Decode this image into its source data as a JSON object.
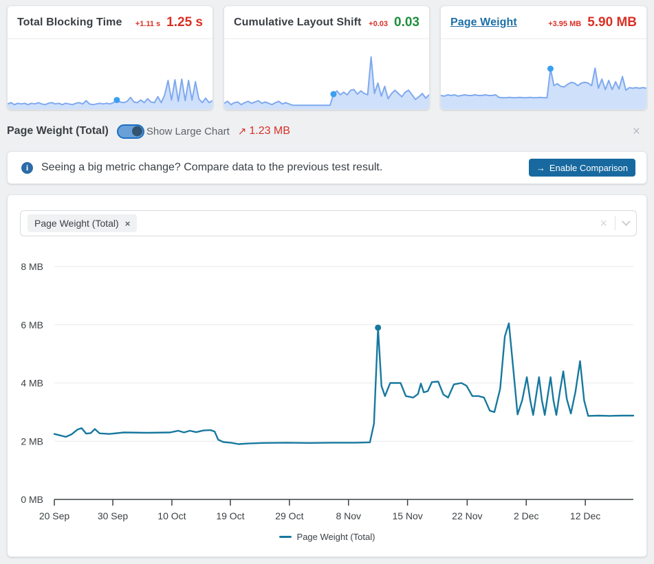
{
  "colors": {
    "red": "#d93025",
    "green": "#1e8e3e",
    "link_blue": "#1c6fa8",
    "spark_stroke": "#7fa9ef",
    "spark_fill": "#cfe0fb",
    "spark_dot": "#3b9ff0",
    "main_line": "#17789e",
    "grid": "#e8e9ea",
    "axis": "#3c4043",
    "button_bg": "#17699f"
  },
  "cards": [
    {
      "title": "Total Blocking Time",
      "delta": "+1.11 s",
      "delta_color": "#d93025",
      "value": "1.25 s",
      "value_color": "#d93025",
      "spark": {
        "values": [
          0.06,
          0.08,
          0.05,
          0.07,
          0.06,
          0.07,
          0.05,
          0.07,
          0.06,
          0.08,
          0.06,
          0.05,
          0.07,
          0.08,
          0.06,
          0.07,
          0.05,
          0.07,
          0.06,
          0.05,
          0.07,
          0.08,
          0.06,
          0.11,
          0.06,
          0.05,
          0.06,
          0.07,
          0.06,
          0.07,
          0.06,
          0.08,
          0.12,
          0.09,
          0.08,
          0.1,
          0.16,
          0.09,
          0.08,
          0.12,
          0.08,
          0.14,
          0.09,
          0.08,
          0.17,
          0.08,
          0.2,
          0.42,
          0.12,
          0.43,
          0.1,
          0.44,
          0.11,
          0.42,
          0.12,
          0.4,
          0.14,
          0.08,
          0.15,
          0.08,
          0.11
        ],
        "dot_index": 32
      }
    },
    {
      "title": "Cumulative Layout Shift",
      "delta": "+0.03",
      "delta_color": "#d93025",
      "value": "0.03",
      "value_color": "#1e8e3e",
      "spark": {
        "values": [
          0.07,
          0.1,
          0.05,
          0.08,
          0.09,
          0.05,
          0.08,
          0.1,
          0.07,
          0.09,
          0.11,
          0.07,
          0.09,
          0.07,
          0.05,
          0.08,
          0.1,
          0.06,
          0.08,
          0.06,
          0.04,
          0.04,
          0.04,
          0.04,
          0.04,
          0.04,
          0.04,
          0.04,
          0.04,
          0.04,
          0.04,
          0.04,
          0.21,
          0.26,
          0.2,
          0.24,
          0.2,
          0.27,
          0.28,
          0.21,
          0.26,
          0.22,
          0.2,
          0.78,
          0.22,
          0.38,
          0.18,
          0.33,
          0.14,
          0.22,
          0.27,
          0.22,
          0.17,
          0.24,
          0.27,
          0.2,
          0.13,
          0.17,
          0.22,
          0.15,
          0.2
        ],
        "dot_index": 32
      }
    },
    {
      "title": "Page Weight",
      "delta": "+3.95 MB",
      "delta_color": "#d93025",
      "value": "5.90 MB",
      "value_color": "#d93025",
      "spark": {
        "values": [
          0.19,
          0.18,
          0.2,
          0.19,
          0.2,
          0.18,
          0.19,
          0.2,
          0.19,
          0.19,
          0.2,
          0.19,
          0.19,
          0.2,
          0.19,
          0.19,
          0.2,
          0.16,
          0.155,
          0.155,
          0.16,
          0.155,
          0.155,
          0.16,
          0.155,
          0.155,
          0.16,
          0.155,
          0.155,
          0.16,
          0.155,
          0.155,
          0.6,
          0.34,
          0.37,
          0.33,
          0.32,
          0.36,
          0.39,
          0.38,
          0.34,
          0.38,
          0.39,
          0.38,
          0.34,
          0.61,
          0.3,
          0.44,
          0.28,
          0.42,
          0.28,
          0.4,
          0.29,
          0.48,
          0.27,
          0.31,
          0.3,
          0.31,
          0.3,
          0.31,
          0.3
        ],
        "dot_index": 32
      }
    }
  ],
  "detail_bar": {
    "title": "Page Weight (Total)",
    "toggle_label": "Show Large Chart",
    "toggle_on": true,
    "trend_icon": "↗",
    "change_value": "1.23 MB",
    "close_icon": "×"
  },
  "banner": {
    "info_icon": "i",
    "text": "Seeing a big metric change? Compare data to the previous test result.",
    "button_arrow": "→",
    "button_label": "Enable Comparison"
  },
  "chart_panel": {
    "filter_chip": {
      "label": "Page Weight (Total)",
      "remove_icon": "×"
    },
    "clear_icon": "×"
  },
  "chart_data": {
    "type": "line",
    "title": "",
    "xlabel": "",
    "ylabel": "",
    "ylim": [
      0,
      8
    ],
    "grid": true,
    "legend_position": "bottom-center",
    "y_ticks": [
      {
        "v": 0,
        "label": "0 MB"
      },
      {
        "v": 2,
        "label": "2 MB"
      },
      {
        "v": 4,
        "label": "4 MB"
      },
      {
        "v": 6,
        "label": "6 MB"
      },
      {
        "v": 8,
        "label": "8 MB"
      }
    ],
    "x_ticks": [
      {
        "f": 0.0,
        "label": "20 Sep"
      },
      {
        "f": 0.101,
        "label": "30 Sep"
      },
      {
        "f": 0.203,
        "label": "10 Oct"
      },
      {
        "f": 0.304,
        "label": "19 Oct"
      },
      {
        "f": 0.406,
        "label": "29 Oct"
      },
      {
        "f": 0.508,
        "label": "8 Nov"
      },
      {
        "f": 0.61,
        "label": "15 Nov"
      },
      {
        "f": 0.713,
        "label": "22 Nov"
      },
      {
        "f": 0.815,
        "label": "2 Dec"
      },
      {
        "f": 0.917,
        "label": "12 Dec"
      }
    ],
    "series": [
      {
        "name": "Page Weight (Total)",
        "color": "#17789e",
        "unit": "MB",
        "points": [
          [
            0.0,
            2.25
          ],
          [
            0.01,
            2.2
          ],
          [
            0.02,
            2.15
          ],
          [
            0.03,
            2.24
          ],
          [
            0.04,
            2.4
          ],
          [
            0.047,
            2.45
          ],
          [
            0.055,
            2.26
          ],
          [
            0.063,
            2.28
          ],
          [
            0.07,
            2.42
          ],
          [
            0.078,
            2.27
          ],
          [
            0.095,
            2.25
          ],
          [
            0.12,
            2.3
          ],
          [
            0.16,
            2.29
          ],
          [
            0.2,
            2.3
          ],
          [
            0.214,
            2.36
          ],
          [
            0.224,
            2.3
          ],
          [
            0.234,
            2.36
          ],
          [
            0.245,
            2.31
          ],
          [
            0.258,
            2.37
          ],
          [
            0.27,
            2.38
          ],
          [
            0.277,
            2.33
          ],
          [
            0.283,
            2.05
          ],
          [
            0.292,
            1.97
          ],
          [
            0.305,
            1.95
          ],
          [
            0.318,
            1.9
          ],
          [
            0.335,
            1.92
          ],
          [
            0.36,
            1.94
          ],
          [
            0.4,
            1.95
          ],
          [
            0.44,
            1.94
          ],
          [
            0.48,
            1.95
          ],
          [
            0.52,
            1.95
          ],
          [
            0.545,
            1.96
          ],
          [
            0.552,
            2.6
          ],
          [
            0.559,
            5.9
          ],
          [
            0.565,
            3.9
          ],
          [
            0.571,
            3.55
          ],
          [
            0.58,
            4.0
          ],
          [
            0.598,
            4.0
          ],
          [
            0.607,
            3.55
          ],
          [
            0.62,
            3.5
          ],
          [
            0.628,
            3.62
          ],
          [
            0.633,
            3.98
          ],
          [
            0.638,
            3.68
          ],
          [
            0.645,
            3.72
          ],
          [
            0.652,
            4.03
          ],
          [
            0.663,
            4.05
          ],
          [
            0.672,
            3.6
          ],
          [
            0.68,
            3.5
          ],
          [
            0.69,
            3.95
          ],
          [
            0.703,
            4.0
          ],
          [
            0.712,
            3.9
          ],
          [
            0.722,
            3.55
          ],
          [
            0.733,
            3.55
          ],
          [
            0.742,
            3.5
          ],
          [
            0.752,
            3.05
          ],
          [
            0.76,
            3.0
          ],
          [
            0.77,
            3.8
          ],
          [
            0.778,
            5.6
          ],
          [
            0.785,
            6.05
          ],
          [
            0.792,
            4.6
          ],
          [
            0.8,
            2.92
          ],
          [
            0.808,
            3.4
          ],
          [
            0.816,
            4.2
          ],
          [
            0.822,
            3.4
          ],
          [
            0.827,
            2.9
          ],
          [
            0.832,
            3.55
          ],
          [
            0.837,
            4.2
          ],
          [
            0.842,
            3.4
          ],
          [
            0.847,
            2.9
          ],
          [
            0.852,
            3.55
          ],
          [
            0.857,
            4.2
          ],
          [
            0.862,
            3.4
          ],
          [
            0.867,
            2.9
          ],
          [
            0.873,
            3.7
          ],
          [
            0.879,
            4.4
          ],
          [
            0.885,
            3.45
          ],
          [
            0.892,
            2.95
          ],
          [
            0.9,
            3.7
          ],
          [
            0.908,
            4.75
          ],
          [
            0.915,
            3.4
          ],
          [
            0.922,
            2.87
          ],
          [
            0.94,
            2.88
          ],
          [
            0.96,
            2.87
          ],
          [
            0.98,
            2.88
          ],
          [
            1.0,
            2.88
          ]
        ],
        "marker": {
          "f": 0.559,
          "value": 5.9
        }
      }
    ],
    "legend": "Page Weight (Total)"
  }
}
